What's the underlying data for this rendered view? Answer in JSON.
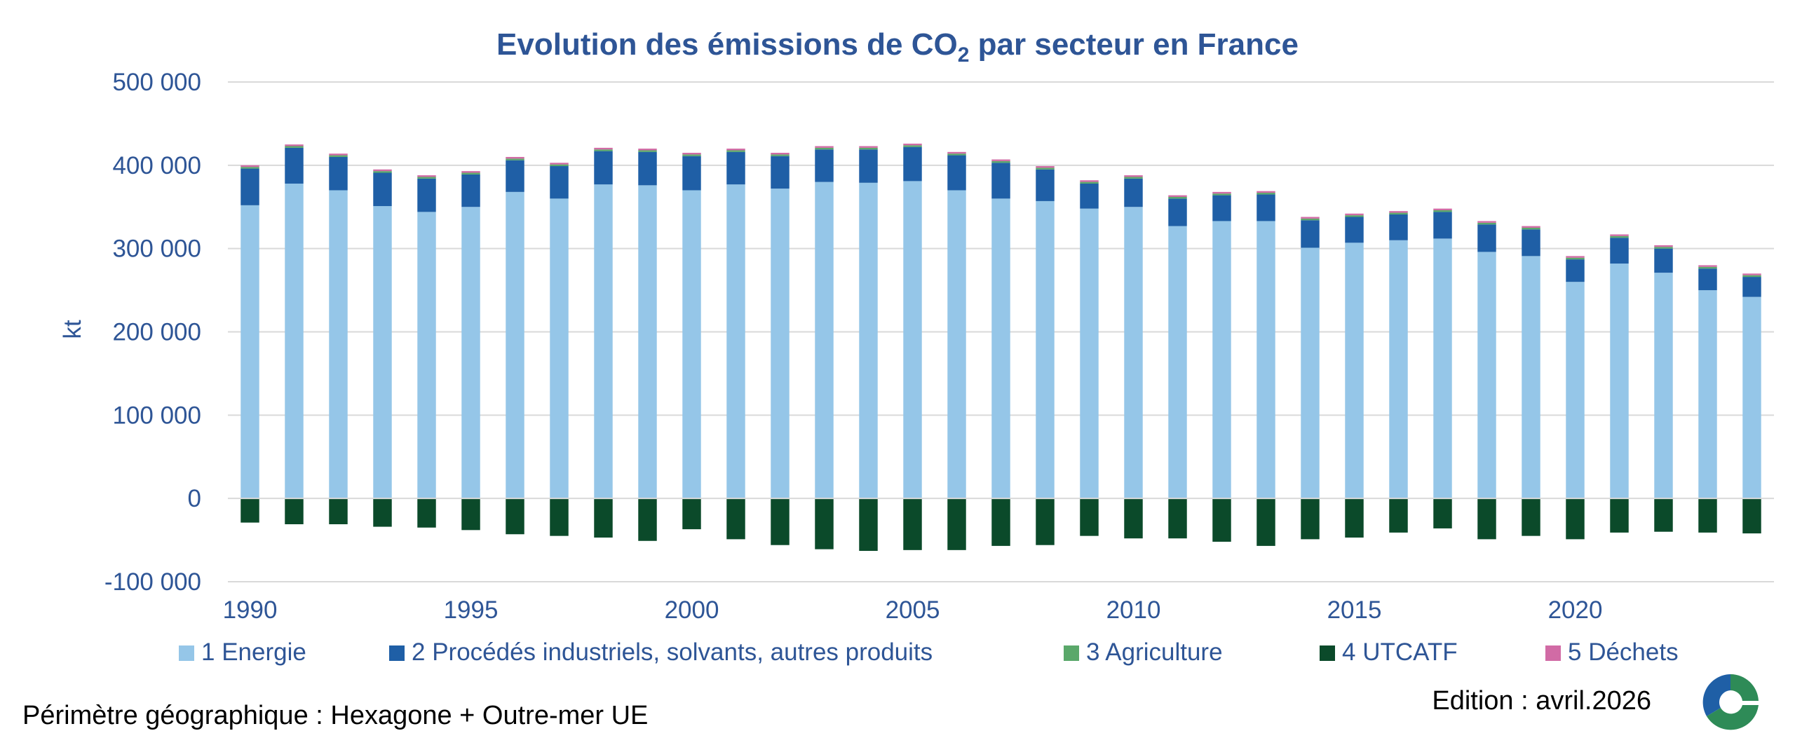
{
  "footer": {
    "perimeter": "Périmètre géographique : Hexagone + Outre-mer UE",
    "edition": "Edition : avril.2026"
  },
  "logo": {
    "icon": "citepa-logo-icon",
    "colors": [
      "#1F5FA6",
      "#2E8B57"
    ]
  },
  "chart_data": {
    "type": "bar",
    "stacked": true,
    "title_parts": {
      "before": "Evolution des émissions de CO",
      "subscript": "2",
      "after": " par secteur en France"
    },
    "ylabel": "kt",
    "xlabel": "",
    "ylim": [
      -100000,
      500000
    ],
    "yticks": [
      -100000,
      0,
      100000,
      200000,
      300000,
      400000,
      500000
    ],
    "ytick_labels": [
      "-100 000",
      "0",
      "100 000",
      "200 000",
      "300 000",
      "400 000",
      "500 000"
    ],
    "xtick_labels": [
      "1990",
      "1995",
      "2000",
      "2005",
      "2010",
      "2015",
      "2020"
    ],
    "grid": true,
    "legend_position": "bottom",
    "categories": [
      "1990",
      "1991",
      "1992",
      "1993",
      "1994",
      "1995",
      "1996",
      "1997",
      "1998",
      "1999",
      "2000",
      "2001",
      "2002",
      "2003",
      "2004",
      "2005",
      "2006",
      "2007",
      "2008",
      "2009",
      "2010",
      "2011",
      "2012",
      "2013",
      "2014",
      "2015",
      "2016",
      "2017",
      "2018",
      "2019",
      "2020",
      "2021",
      "2022",
      "2023",
      "2024"
    ],
    "series": [
      {
        "name": "1 Energie",
        "color": "#95C6E8",
        "values": [
          352000,
          378000,
          370000,
          351000,
          344000,
          350000,
          368000,
          360000,
          377000,
          376000,
          370000,
          377000,
          372000,
          380000,
          379000,
          381000,
          370000,
          360000,
          357000,
          348000,
          350000,
          327000,
          333000,
          333000,
          301000,
          307000,
          310000,
          312000,
          296000,
          291000,
          260000,
          282000,
          271000,
          250000,
          242000
        ]
      },
      {
        "name": "2  Procédés industriels, solvants, autres produits",
        "color": "#1F5FA6",
        "values": [
          44000,
          43000,
          40000,
          40000,
          40000,
          39000,
          38000,
          39000,
          40000,
          40000,
          41000,
          39000,
          39000,
          39000,
          40000,
          41000,
          42000,
          43000,
          38000,
          30000,
          34000,
          33000,
          31000,
          32000,
          33000,
          31000,
          31000,
          32000,
          33000,
          32000,
          27000,
          31000,
          29000,
          26000,
          24000
        ]
      },
      {
        "name": "3  Agriculture",
        "color": "#5AA86A",
        "values": [
          2000,
          2000,
          2000,
          2000,
          2000,
          2000,
          2000,
          2000,
          2000,
          2000,
          2000,
          2000,
          2000,
          2000,
          2000,
          2000,
          2000,
          2000,
          2000,
          2000,
          2000,
          2000,
          2000,
          2000,
          2000,
          2000,
          2000,
          2000,
          2000,
          2000,
          2000,
          2000,
          2000,
          2000,
          2000
        ]
      },
      {
        "name": "4  UTCATF",
        "color": "#0B4A2A",
        "values": [
          -29000,
          -31000,
          -31000,
          -34000,
          -35000,
          -38000,
          -43000,
          -45000,
          -47000,
          -51000,
          -37000,
          -49000,
          -56000,
          -61000,
          -63000,
          -62000,
          -62000,
          -57000,
          -56000,
          -45000,
          -48000,
          -48000,
          -52000,
          -57000,
          -49000,
          -47000,
          -41000,
          -36000,
          -49000,
          -45000,
          -49000,
          -41000,
          -40000,
          -41000,
          -42000
        ]
      },
      {
        "name": "5  Déchets",
        "color": "#D16BA5",
        "values": [
          2000,
          2000,
          2000,
          2000,
          2000,
          2000,
          2000,
          2000,
          2000,
          2000,
          2000,
          2000,
          2000,
          2000,
          2000,
          2000,
          2000,
          2000,
          2000,
          2000,
          2000,
          2000,
          2000,
          2000,
          2000,
          2000,
          2000,
          2000,
          2000,
          2000,
          2000,
          2000,
          2000,
          2000,
          2000
        ]
      }
    ]
  }
}
